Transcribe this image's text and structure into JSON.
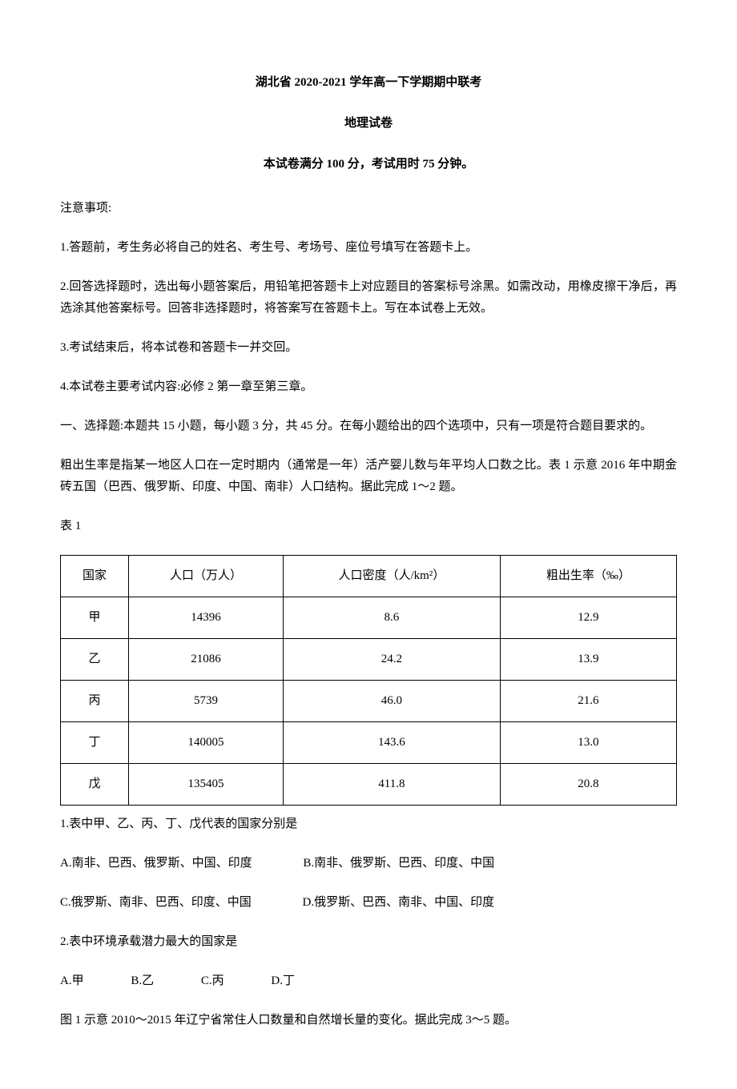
{
  "header": {
    "title": "湖北省 2020-2021 学年高一下学期期中联考",
    "subject": "地理试卷",
    "exam_info": "本试卷满分 100 分，考试用时 75 分钟。"
  },
  "notice_heading": "注意事项:",
  "notices": [
    "1.答题前，考生务必将自己的姓名、考生号、考场号、座位号填写在答题卡上。",
    "2.回答选择题时，选出每小题答案后，用铅笔把答题卡上对应题目的答案标号涂黑。如需改动，用橡皮擦干净后，再选涂其他答案标号。回答非选择题时，将答案写在答题卡上。写在本试卷上无效。",
    "3.考试结束后，将本试卷和答题卡一并交回。",
    "4.本试卷主要考试内容:必修 2 第一章至第三章。"
  ],
  "section_intro": "一、选择题:本题共 15 小题，每小题 3 分，共 45 分。在每小题给出的四个选项中，只有一项是符合题目要求的。",
  "context1": "粗出生率是指某一地区人口在一定时期内（通常是一年）活产婴儿数与年平均人口数之比。表 1 示意 2016 年中期金砖五国（巴西、俄罗斯、印度、中国、南非）人口结构。据此完成 1～2 题。",
  "table_label": "表 1",
  "table": {
    "columns": [
      "国家",
      "人口（万人）",
      "人口密度（人/km²）",
      "粗出生率（‰）"
    ],
    "column_widths": [
      "25%",
      "25%",
      "25%",
      "25%"
    ],
    "border_color": "#000000",
    "header_bg": "#ffffff",
    "cell_align": "center",
    "font_size": 15,
    "rows": [
      [
        "甲",
        "14396",
        "8.6",
        "12.9"
      ],
      [
        "乙",
        "21086",
        "24.2",
        "13.9"
      ],
      [
        "丙",
        "5739",
        "46.0",
        "21.6"
      ],
      [
        "丁",
        "140005",
        "143.6",
        "13.0"
      ],
      [
        "戊",
        "135405",
        "411.8",
        "20.8"
      ]
    ]
  },
  "q1": {
    "text": "1.表中甲、乙、丙、丁、戊代表的国家分别是",
    "options": {
      "A": "A.南非、巴西、俄罗斯、中国、印度",
      "B": "B.南非、俄罗斯、巴西、印度、中国",
      "C": "C.俄罗斯、南非、巴西、印度、中国",
      "D": "D.俄罗斯、巴西、南非、中国、印度"
    }
  },
  "q2": {
    "text": "2.表中环境承载潜力最大的国家是",
    "options": {
      "A": "A.甲",
      "B": "B.乙",
      "C": "C.丙",
      "D": "D.丁"
    }
  },
  "context2": "图 1 示意 2010～2015 年辽宁省常住人口数量和自然增长量的变化。据此完成 3～5 题。"
}
